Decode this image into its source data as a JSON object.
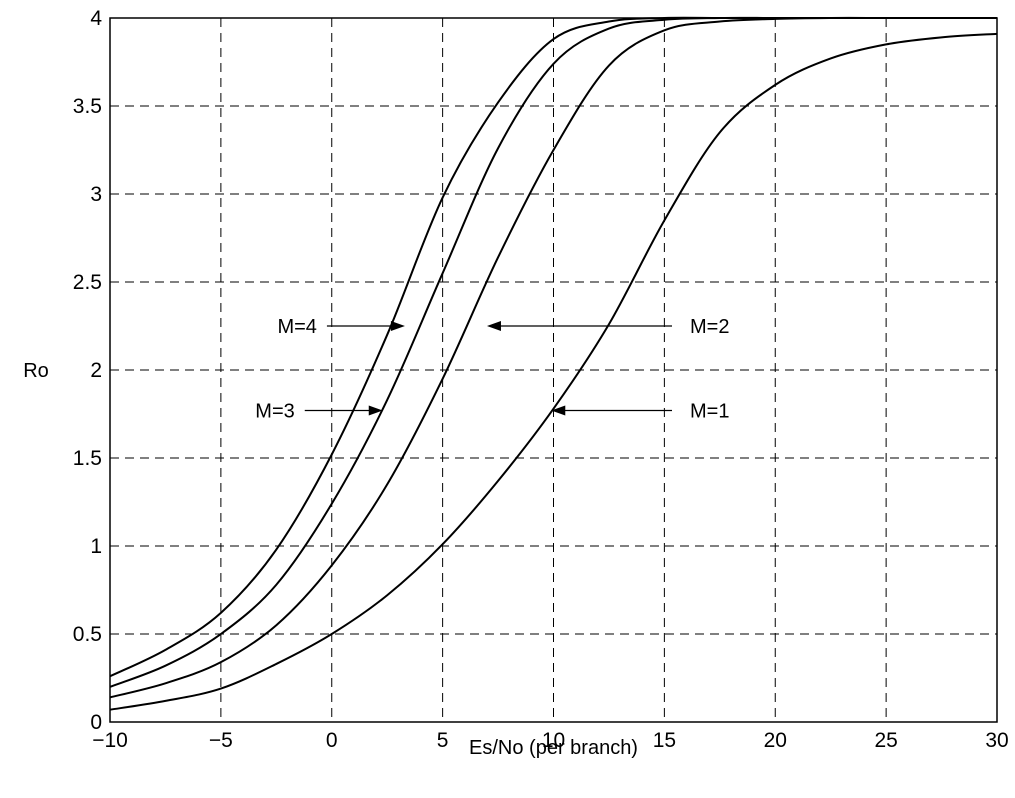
{
  "chart_data": {
    "type": "line",
    "title": "",
    "xlabel": "Es/No (per branch)",
    "ylabel": "Ro",
    "xlim": [
      -10,
      30
    ],
    "ylim": [
      0,
      4
    ],
    "xticks": [
      -10,
      -5,
      0,
      5,
      10,
      15,
      20,
      25,
      30
    ],
    "yticks": [
      0,
      0.5,
      1,
      1.5,
      2,
      2.5,
      3,
      3.5,
      4
    ],
    "xtick_labels": [
      "−10",
      "−5",
      "0",
      "5",
      "10",
      "15",
      "20",
      "25",
      "30"
    ],
    "ytick_labels": [
      "0",
      "0.5",
      "1",
      "1.5",
      "2",
      "2.5",
      "3",
      "3.5",
      "4"
    ],
    "grid": true,
    "legend": "none",
    "x": [
      -10,
      -7.5,
      -5,
      -2.5,
      0,
      2.5,
      5,
      7.5,
      10,
      12.5,
      15,
      17.5,
      20,
      22.5,
      25,
      27.5,
      30
    ],
    "series": [
      {
        "name": "M=1",
        "values": [
          0.07,
          0.12,
          0.19,
          0.33,
          0.5,
          0.72,
          1.01,
          1.37,
          1.78,
          2.26,
          2.85,
          3.35,
          3.62,
          3.77,
          3.85,
          3.89,
          3.91
        ]
      },
      {
        "name": "M=2",
        "values": [
          0.14,
          0.22,
          0.34,
          0.55,
          0.89,
          1.35,
          1.95,
          2.64,
          3.25,
          3.73,
          3.93,
          3.98,
          3.995,
          4.0,
          4.0,
          4.0,
          4.0
        ]
      },
      {
        "name": "M=3",
        "values": [
          0.2,
          0.32,
          0.5,
          0.78,
          1.24,
          1.83,
          2.55,
          3.26,
          3.74,
          3.94,
          3.99,
          4.0,
          4.0,
          4.0,
          4.0,
          4.0,
          4.0
        ]
      },
      {
        "name": "M=4",
        "values": [
          0.26,
          0.41,
          0.62,
          0.98,
          1.52,
          2.2,
          2.98,
          3.52,
          3.88,
          3.98,
          4.0,
          4.0,
          4.0,
          4.0,
          4.0,
          4.0,
          4.0
        ]
      }
    ],
    "annotations": [
      {
        "text": "M=4",
        "target_series": "M=4",
        "target": [
          3.3,
          2.25
        ],
        "side": "left"
      },
      {
        "text": "M=3",
        "target_series": "M=3",
        "target": [
          2.3,
          1.77
        ],
        "side": "left"
      },
      {
        "text": "M=2",
        "target_series": "M=2",
        "target": [
          7.0,
          2.25
        ],
        "side": "right"
      },
      {
        "text": "M=1",
        "target_series": "M=1",
        "target": [
          9.9,
          1.77
        ],
        "side": "right"
      }
    ]
  }
}
